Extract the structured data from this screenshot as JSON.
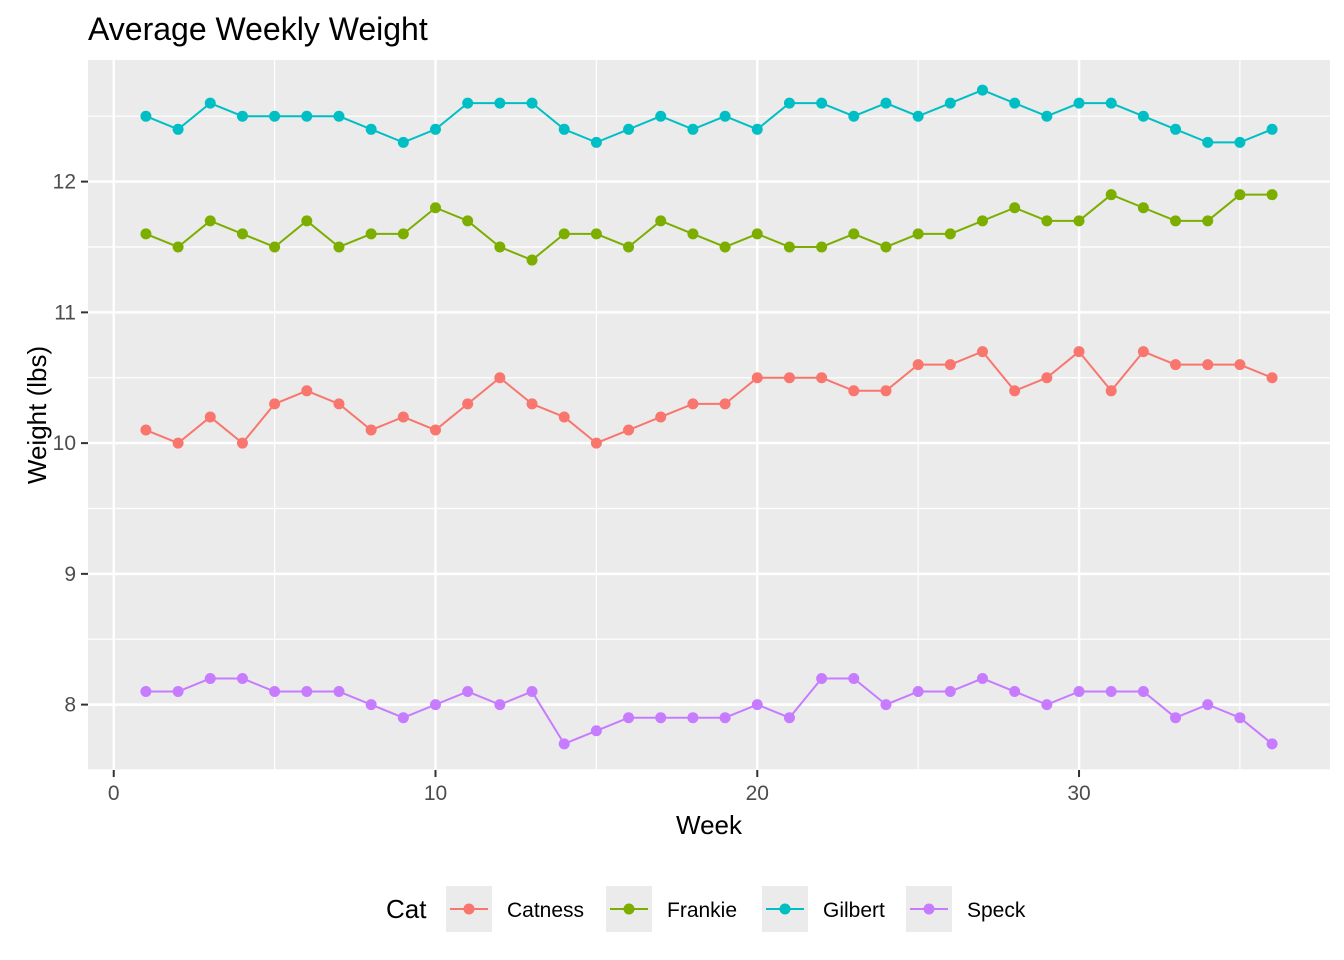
{
  "chart_data": {
    "type": "line",
    "title": "Average Weekly Weight",
    "xlabel": "Week",
    "ylabel": "Weight (lbs)",
    "xlim": [
      -0.8,
      37.8
    ],
    "ylim": [
      7.5,
      12.93
    ],
    "x_ticks": [
      0,
      10,
      20,
      30
    ],
    "y_ticks": [
      8,
      9,
      10,
      11,
      12
    ],
    "grid": true,
    "legend": {
      "title": "Cat",
      "position": "bottom"
    },
    "x": [
      1,
      2,
      3,
      4,
      5,
      6,
      7,
      8,
      9,
      10,
      11,
      12,
      13,
      14,
      15,
      16,
      17,
      18,
      19,
      20,
      21,
      22,
      23,
      24,
      25,
      26,
      27,
      28,
      29,
      30,
      31,
      32,
      33,
      34,
      35,
      36
    ],
    "series": [
      {
        "name": "Catness",
        "color": "#F8766D",
        "values": [
          10.1,
          10.0,
          10.2,
          10.0,
          10.3,
          10.4,
          10.3,
          10.1,
          10.2,
          10.1,
          10.3,
          10.5,
          10.3,
          10.2,
          10.0,
          10.1,
          10.2,
          10.3,
          10.3,
          10.5,
          10.5,
          10.5,
          10.4,
          10.4,
          10.6,
          10.6,
          10.7,
          10.4,
          10.5,
          10.7,
          10.4,
          10.7,
          10.6,
          10.6,
          10.6,
          10.5
        ]
      },
      {
        "name": "Frankie",
        "color": "#7CAE00",
        "values": [
          11.6,
          11.5,
          11.7,
          11.6,
          11.5,
          11.7,
          11.5,
          11.6,
          11.6,
          11.8,
          11.7,
          11.5,
          11.4,
          11.6,
          11.6,
          11.5,
          11.7,
          11.6,
          11.5,
          11.6,
          11.5,
          11.5,
          11.6,
          11.5,
          11.6,
          11.6,
          11.7,
          11.8,
          11.7,
          11.7,
          11.9,
          11.8,
          11.7,
          11.7,
          11.9,
          11.9
        ]
      },
      {
        "name": "Gilbert",
        "color": "#00BFC4",
        "values": [
          12.5,
          12.4,
          12.6,
          12.5,
          12.5,
          12.5,
          12.5,
          12.4,
          12.3,
          12.4,
          12.6,
          12.6,
          12.6,
          12.4,
          12.3,
          12.4,
          12.5,
          12.4,
          12.5,
          12.4,
          12.6,
          12.6,
          12.5,
          12.6,
          12.5,
          12.6,
          12.7,
          12.6,
          12.5,
          12.6,
          12.6,
          12.5,
          12.4,
          12.3,
          12.3,
          12.4
        ]
      },
      {
        "name": "Speck",
        "color": "#C77CFF",
        "values": [
          8.1,
          8.1,
          8.2,
          8.2,
          8.1,
          8.1,
          8.1,
          8.0,
          7.9,
          8.0,
          8.1,
          8.0,
          8.1,
          7.7,
          7.8,
          7.9,
          7.9,
          7.9,
          7.9,
          8.0,
          7.9,
          8.2,
          8.2,
          8.0,
          8.1,
          8.1,
          8.2,
          8.1,
          8.0,
          8.1,
          8.1,
          8.1,
          7.9,
          8.0,
          7.9,
          7.7
        ]
      }
    ]
  }
}
